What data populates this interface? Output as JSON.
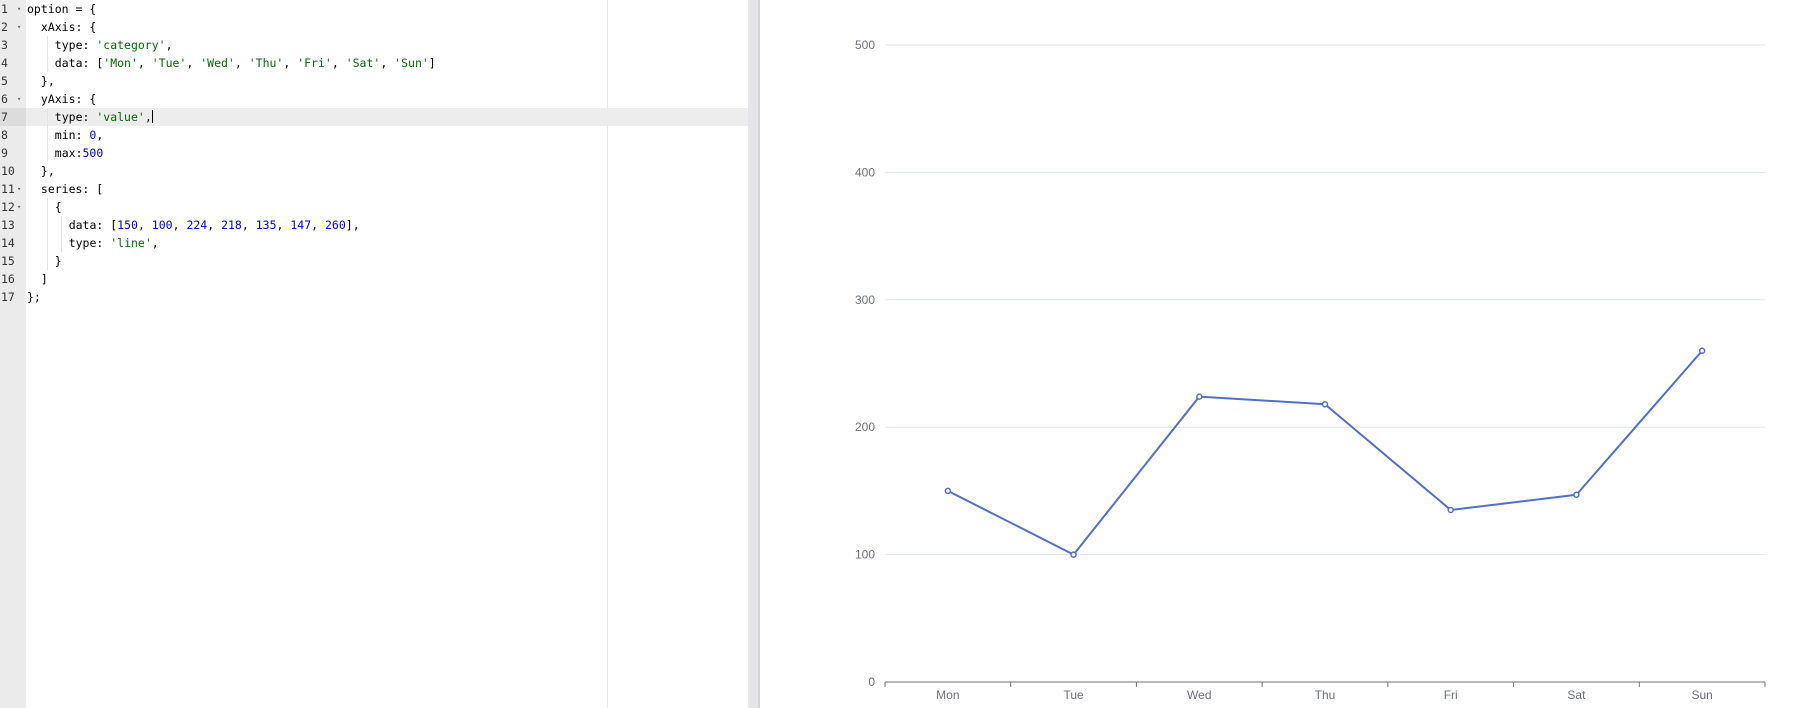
{
  "editor": {
    "active_line": 7,
    "lines": [
      {
        "no": "1",
        "fold": true,
        "indent": 0,
        "tokens": [
          {
            "t": "option = {",
            "c": "p"
          }
        ]
      },
      {
        "no": "2",
        "fold": true,
        "indent": 1,
        "tokens": [
          {
            "t": "xAxis: {",
            "c": "p"
          }
        ]
      },
      {
        "no": "3",
        "fold": false,
        "indent": 2,
        "tokens": [
          {
            "t": "type: ",
            "c": "p"
          },
          {
            "t": "'category'",
            "c": "s"
          },
          {
            "t": ",",
            "c": "p"
          }
        ]
      },
      {
        "no": "4",
        "fold": false,
        "indent": 2,
        "tokens": [
          {
            "t": "data: [",
            "c": "p"
          },
          {
            "t": "'Mon'",
            "c": "s"
          },
          {
            "t": ", ",
            "c": "p"
          },
          {
            "t": "'Tue'",
            "c": "s"
          },
          {
            "t": ", ",
            "c": "p"
          },
          {
            "t": "'Wed'",
            "c": "s"
          },
          {
            "t": ", ",
            "c": "p"
          },
          {
            "t": "'Thu'",
            "c": "s"
          },
          {
            "t": ", ",
            "c": "p"
          },
          {
            "t": "'Fri'",
            "c": "s"
          },
          {
            "t": ", ",
            "c": "p"
          },
          {
            "t": "'Sat'",
            "c": "s"
          },
          {
            "t": ", ",
            "c": "p"
          },
          {
            "t": "'Sun'",
            "c": "s"
          },
          {
            "t": "]",
            "c": "p"
          }
        ]
      },
      {
        "no": "5",
        "fold": false,
        "indent": 1,
        "tokens": [
          {
            "t": "},",
            "c": "p"
          }
        ]
      },
      {
        "no": "6",
        "fold": true,
        "indent": 1,
        "tokens": [
          {
            "t": "yAxis: {",
            "c": "p"
          }
        ]
      },
      {
        "no": "7",
        "fold": false,
        "indent": 2,
        "tokens": [
          {
            "t": "type: ",
            "c": "p"
          },
          {
            "t": "'value'",
            "c": "s"
          },
          {
            "t": ",",
            "c": "p"
          }
        ],
        "cursor": true
      },
      {
        "no": "8",
        "fold": false,
        "indent": 2,
        "tokens": [
          {
            "t": "min: ",
            "c": "p"
          },
          {
            "t": "0",
            "c": "n"
          },
          {
            "t": ",",
            "c": "p"
          }
        ]
      },
      {
        "no": "9",
        "fold": false,
        "indent": 2,
        "tokens": [
          {
            "t": "max:",
            "c": "p"
          },
          {
            "t": "500",
            "c": "n"
          }
        ]
      },
      {
        "no": "10",
        "fold": false,
        "indent": 1,
        "tokens": [
          {
            "t": "},",
            "c": "p"
          }
        ]
      },
      {
        "no": "11",
        "fold": true,
        "indent": 1,
        "tokens": [
          {
            "t": "series: [",
            "c": "p"
          }
        ]
      },
      {
        "no": "12",
        "fold": true,
        "indent": 2,
        "tokens": [
          {
            "t": "{",
            "c": "p"
          }
        ]
      },
      {
        "no": "13",
        "fold": false,
        "indent": 3,
        "tokens": [
          {
            "t": "data: [",
            "c": "p"
          },
          {
            "t": "150",
            "c": "n"
          },
          {
            "t": ", ",
            "c": "p"
          },
          {
            "t": "100",
            "c": "n"
          },
          {
            "t": ", ",
            "c": "p"
          },
          {
            "t": "224",
            "c": "n"
          },
          {
            "t": ", ",
            "c": "p"
          },
          {
            "t": "218",
            "c": "n"
          },
          {
            "t": ", ",
            "c": "p"
          },
          {
            "t": "135",
            "c": "n"
          },
          {
            "t": ", ",
            "c": "p"
          },
          {
            "t": "147",
            "c": "n"
          },
          {
            "t": ", ",
            "c": "p"
          },
          {
            "t": "260",
            "c": "n"
          },
          {
            "t": "],",
            "c": "p"
          }
        ]
      },
      {
        "no": "14",
        "fold": false,
        "indent": 3,
        "tokens": [
          {
            "t": "type: ",
            "c": "p"
          },
          {
            "t": "'line'",
            "c": "s"
          },
          {
            "t": ",",
            "c": "p"
          }
        ]
      },
      {
        "no": "15",
        "fold": false,
        "indent": 2,
        "tokens": [
          {
            "t": "}",
            "c": "p"
          }
        ]
      },
      {
        "no": "16",
        "fold": false,
        "indent": 1,
        "tokens": [
          {
            "t": "]",
            "c": "p"
          }
        ]
      },
      {
        "no": "17",
        "fold": false,
        "indent": 0,
        "tokens": [
          {
            "t": "};",
            "c": "p"
          }
        ]
      }
    ]
  },
  "colors": {
    "series_line": "#5470c6",
    "grid_line": "#e0e6f1",
    "axis_line": "#6e7079",
    "axis_label": "#6e7079",
    "code_string": "#036a07",
    "code_number": "#0000cd"
  },
  "chart_data": {
    "type": "line",
    "categories": [
      "Mon",
      "Tue",
      "Wed",
      "Thu",
      "Fri",
      "Sat",
      "Sun"
    ],
    "series": [
      {
        "values": [
          150,
          100,
          224,
          218,
          135,
          147,
          260
        ]
      }
    ],
    "ylim": [
      0,
      500
    ],
    "yticks": [
      0,
      100,
      200,
      300,
      400,
      500
    ],
    "grid": true,
    "legend": "none",
    "title": "",
    "xlabel": "",
    "ylabel": ""
  }
}
